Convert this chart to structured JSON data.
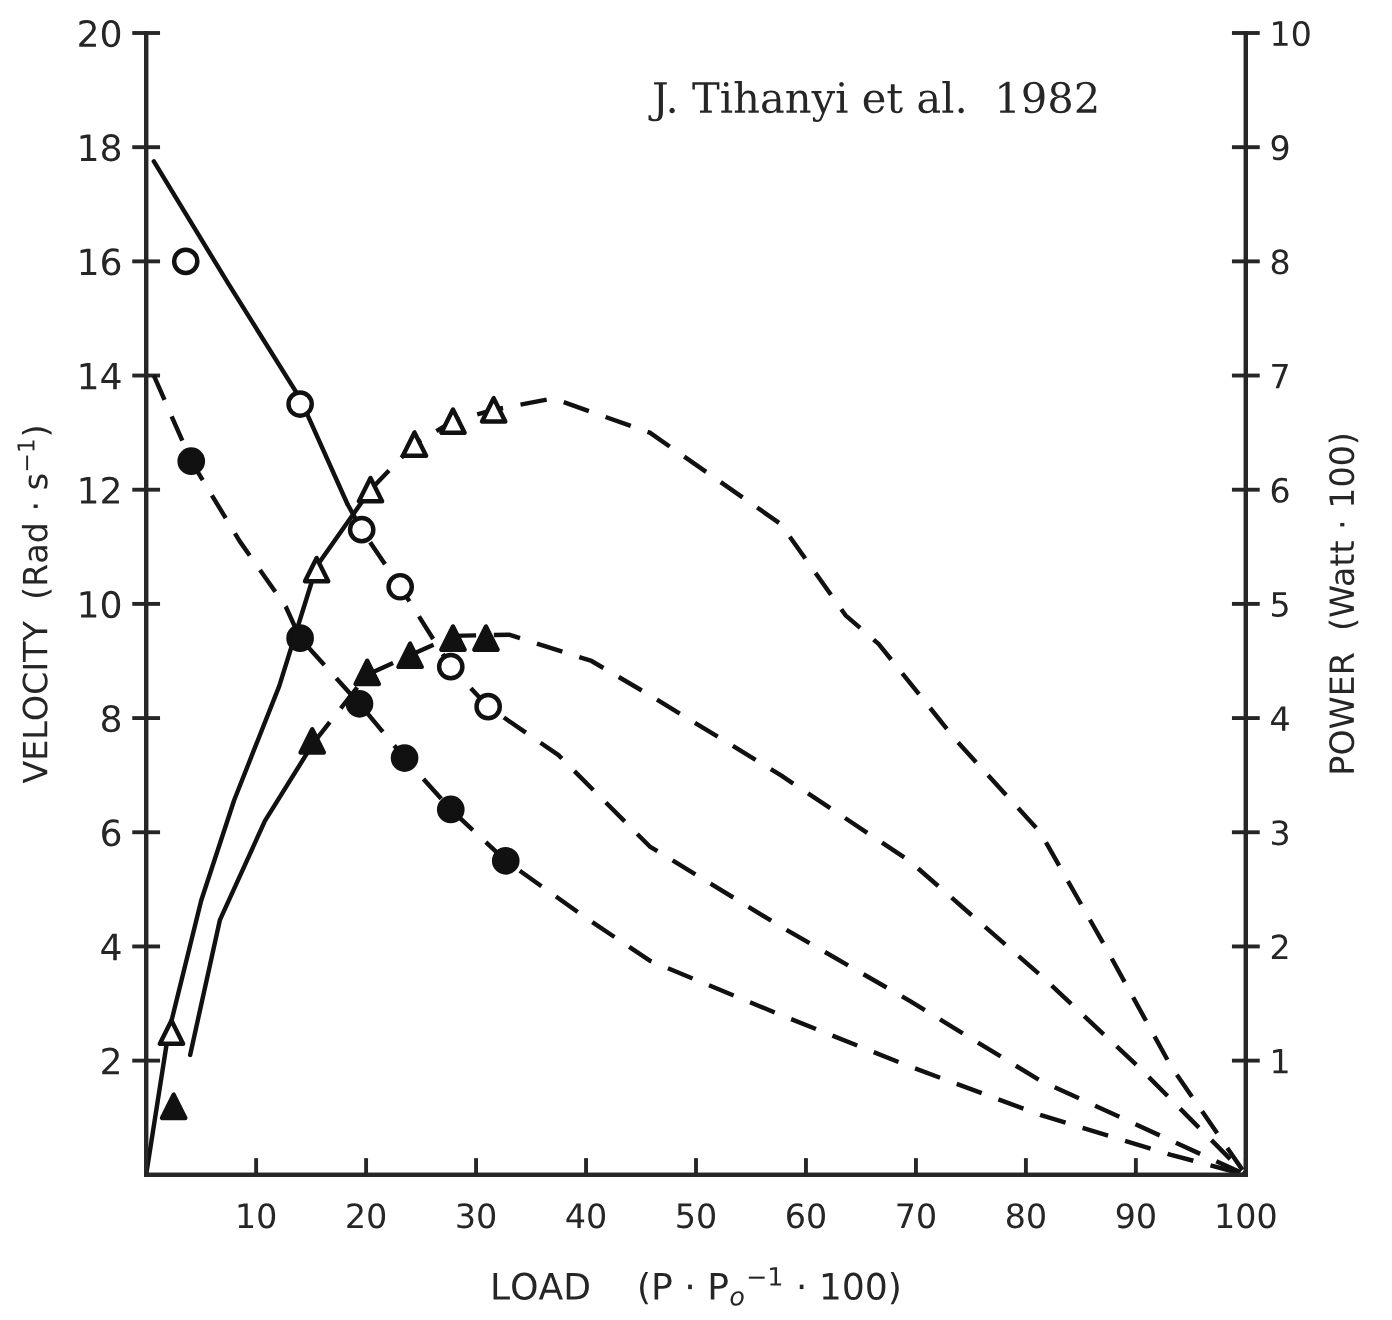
{
  "chart_data": {
    "type": "line",
    "xlabel": "LOAD    (P · P$_{o}$$^{−1}$ · 100)",
    "ylabel": "VELOCITY  (Rad · s$^{−1}$)",
    "y2label": "POWER  (Watt · 100)",
    "annotations": [
      "J. Tihanyi et al.  1982"
    ],
    "xlim": [
      0,
      100
    ],
    "xticks": [
      10,
      20,
      30,
      40,
      50,
      60,
      70,
      80,
      90,
      100
    ],
    "ylim": [
      0,
      20
    ],
    "yticks": [
      2,
      4,
      6,
      8,
      10,
      12,
      14,
      16,
      18,
      20
    ],
    "y2lim": [
      0,
      10
    ],
    "y2ticks": [
      1,
      2,
      3,
      4,
      5,
      6,
      7,
      8,
      9,
      10
    ],
    "grid": false,
    "legend": false,
    "series": [
      {
        "type": "scatter",
        "marker": "circle",
        "color": "#ffffff",
        "x": [
          3.6,
          14.0,
          19.6,
          23.1,
          27.7,
          31.1
        ],
        "values": [
          16.0,
          13.5,
          11.3,
          10.3,
          8.9,
          8.2
        ]
      },
      {
        "type": "scatter",
        "marker": "circle",
        "color": "#111111",
        "x": [
          4.1,
          14.0,
          19.4,
          23.5,
          27.7,
          32.7
        ],
        "values": [
          12.5,
          9.4,
          8.25,
          7.3,
          6.4,
          5.5
        ]
      },
      {
        "type": "scatter",
        "marker": "triangle",
        "color": "#ffffff",
        "axis": "y2",
        "x": [
          2.3,
          15.5,
          20.4,
          24.4,
          27.9,
          31.6
        ],
        "values": [
          1.25,
          5.3,
          6.0,
          6.4,
          6.6,
          6.7
        ]
      },
      {
        "type": "scatter",
        "marker": "triangle",
        "color": "#111111",
        "axis": "y2",
        "x": [
          2.5,
          15.1,
          20.1,
          24.0,
          27.9,
          30.9
        ],
        "values": [
          0.6,
          3.8,
          4.4,
          4.55,
          4.7,
          4.7
        ]
      },
      {
        "line_style": "solid",
        "color": "#111111",
        "x": [
          0.7,
          7.5,
          14.0,
          18.3
        ],
        "values": [
          17.75,
          15.6,
          13.6,
          11.75
        ]
      },
      {
        "line_style": "dashed",
        "color": "#111111",
        "x": [
          18.3,
          19.6,
          23.1,
          27.7,
          31.1,
          37.5,
          45.8,
          57.7,
          69.4,
          81.3,
          93.2,
          100
        ],
        "values": [
          11.75,
          11.3,
          10.3,
          8.9,
          8.2,
          7.35,
          5.75,
          4.35,
          3.05,
          1.65,
          0.6,
          0
        ]
      },
      {
        "line_style": "dashed",
        "color": "#111111",
        "x": [
          0.7,
          4.1,
          8.5,
          12.7,
          14.0,
          19.4,
          23.5,
          27.7,
          32.7,
          40,
          45.8,
          57.7,
          69.4,
          81.3,
          93.2,
          100
        ],
        "values": [
          14.0,
          12.5,
          11.1,
          9.95,
          9.4,
          8.25,
          7.3,
          6.4,
          5.5,
          4.5,
          3.75,
          2.8,
          1.9,
          1.05,
          0.35,
          0
        ]
      },
      {
        "line_style": "solid",
        "color": "#111111",
        "axis": "y2",
        "x": [
          0,
          2.0,
          5.0,
          8.0,
          12.1,
          15.5,
          20.4
        ],
        "values": [
          0,
          1.23,
          2.4,
          3.28,
          4.28,
          5.33,
          6.0
        ]
      },
      {
        "line_style": "dashed",
        "color": "#111111",
        "axis": "y2",
        "x": [
          20.4,
          24.4,
          27.9,
          31.6,
          37,
          45.8,
          57.7,
          63.6,
          66.6,
          73.7,
          81.3,
          87.2,
          93.2,
          100
        ],
        "values": [
          6.0,
          6.4,
          6.6,
          6.7,
          6.8,
          6.5,
          5.7,
          4.9,
          4.65,
          3.8,
          3.0,
          2.0,
          0.95,
          0
        ]
      },
      {
        "line_style": "solid",
        "color": "#111111",
        "axis": "y2",
        "x": [
          4.0,
          6.7,
          10.8,
          15.2
        ],
        "values": [
          1.05,
          2.23,
          3.1,
          3.78
        ]
      },
      {
        "line_style": "dashed",
        "color": "#111111",
        "axis": "y2",
        "x": [
          15.2,
          20.1,
          24.0,
          27.9,
          33,
          40.5,
          45.8,
          57.7,
          69.4,
          81.3,
          90.2,
          100
        ],
        "values": [
          3.78,
          4.38,
          4.55,
          4.72,
          4.73,
          4.5,
          4.2,
          3.5,
          2.75,
          1.75,
          0.95,
          0
        ]
      }
    ]
  }
}
